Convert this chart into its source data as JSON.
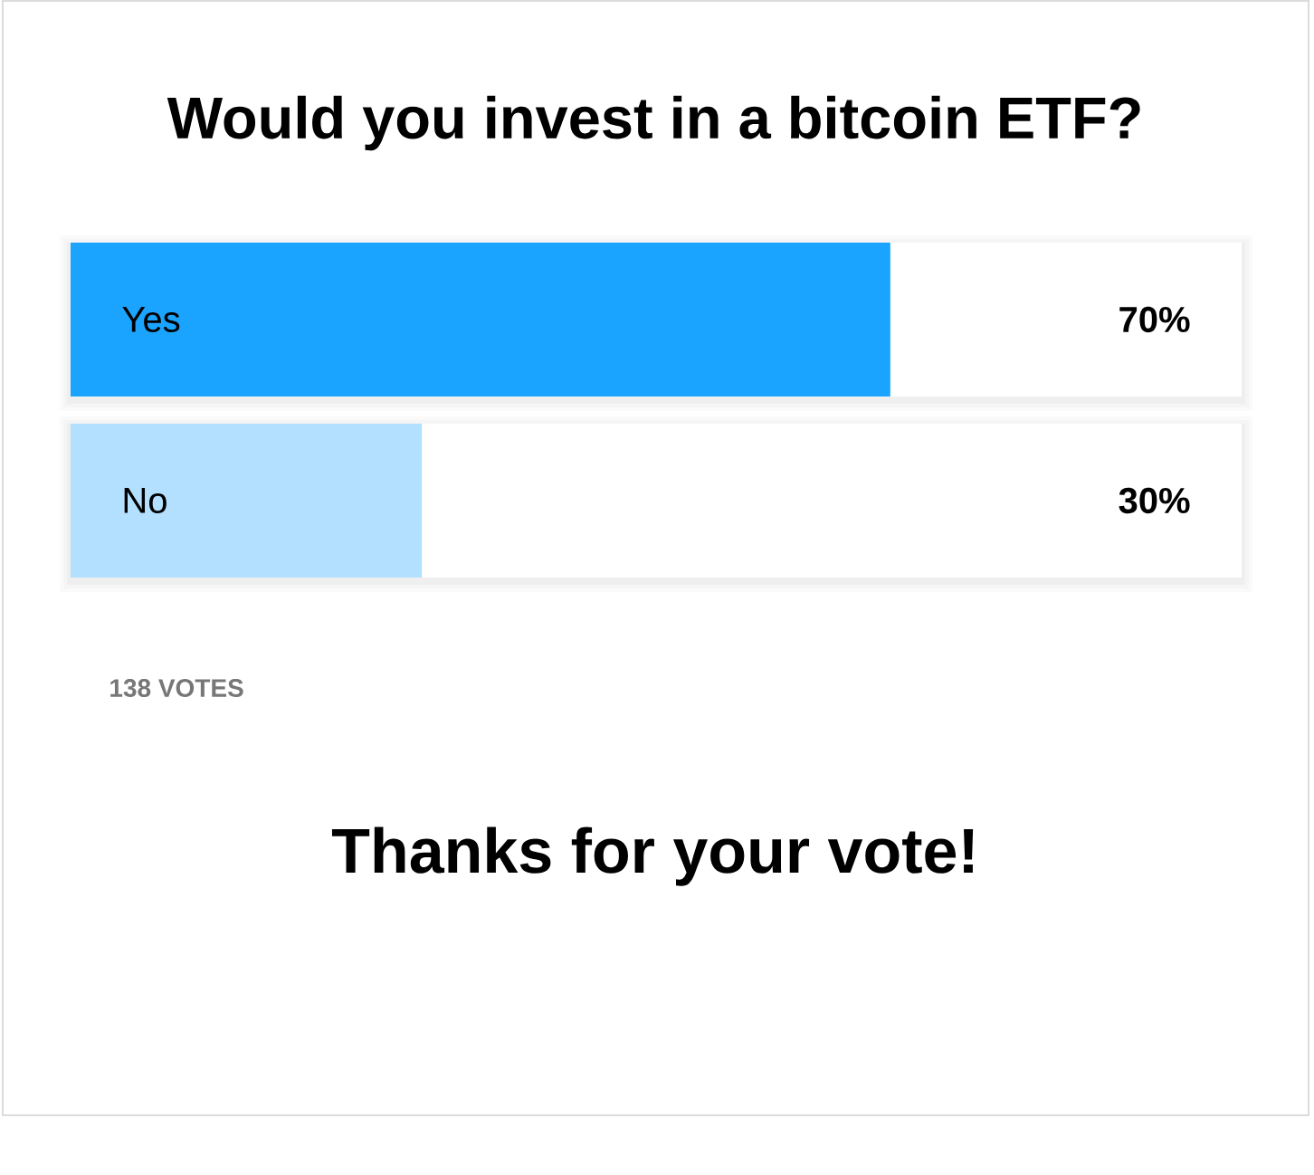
{
  "chart_data": {
    "type": "bar",
    "orientation": "horizontal",
    "title": "Would you invest in a bitcoin ETF?",
    "categories": [
      "Yes",
      "No"
    ],
    "values": [
      70,
      30
    ],
    "colors": [
      "#1ba4ff",
      "#b3e0ff"
    ],
    "value_labels": [
      "70%",
      "30%"
    ],
    "xlim": [
      0,
      100
    ],
    "tick_labels": "y",
    "annotations": [
      "138 VOTES",
      "Thanks for your vote!"
    ]
  }
}
